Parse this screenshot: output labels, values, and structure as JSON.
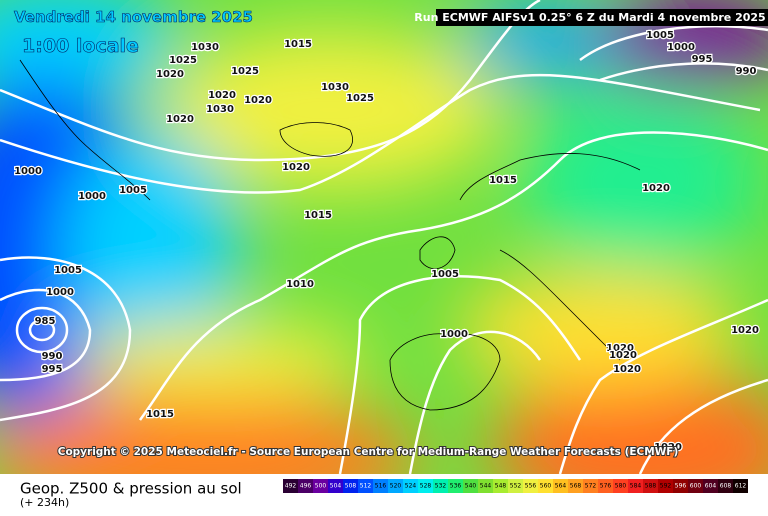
{
  "header": {
    "date": "Vendredi 14 novembre 2025",
    "time": "1:00 locale",
    "run": "Run ECMWF AIFSv1 0.25° 6 Z du Mardi 4 novembre 2025"
  },
  "copyright": "Copyright © 2025 Meteociel.fr - Source European Centre for Medium-Range Weather Forecasts (ECMWF)",
  "footer": {
    "title": "Geop. Z500 & pression au sol",
    "lead": "(+ 234h)"
  },
  "isobar_labels": [
    "1030",
    "1025",
    "1020",
    "1025",
    "1015",
    "1020",
    "1030",
    "1020",
    "1030",
    "1025",
    "1020",
    "1020",
    "1015",
    "1010",
    "1000",
    "1000",
    "1005",
    "1005",
    "1000",
    "985",
    "990",
    "995",
    "1015",
    "1015",
    "1005",
    "1000",
    "1020",
    "1020",
    "1020",
    "1020",
    "1020",
    "1020",
    "1005",
    "1000",
    "995",
    "990"
  ],
  "scale": {
    "labels": [
      "492",
      "496",
      "500",
      "504",
      "508",
      "512",
      "516",
      "520",
      "524",
      "528",
      "532",
      "536",
      "540",
      "544",
      "548",
      "552",
      "556",
      "560",
      "564",
      "568",
      "572",
      "576",
      "580",
      "584",
      "588",
      "592",
      "596",
      "600",
      "604",
      "608",
      "612"
    ],
    "colors": [
      "#2a0033",
      "#4b0066",
      "#6a00a0",
      "#3300cc",
      "#0022ee",
      "#0050ff",
      "#0080ff",
      "#00a8ff",
      "#00d0ff",
      "#00eeee",
      "#00f0b0",
      "#20ee70",
      "#50e040",
      "#80e030",
      "#a8ec30",
      "#d0f040",
      "#f0f040",
      "#ffe030",
      "#ffc020",
      "#ffa020",
      "#ff8020",
      "#ff6020",
      "#ff4020",
      "#f02020",
      "#d01010",
      "#b00000",
      "#900000",
      "#700010",
      "#500020",
      "#300010",
      "#100000"
    ]
  }
}
